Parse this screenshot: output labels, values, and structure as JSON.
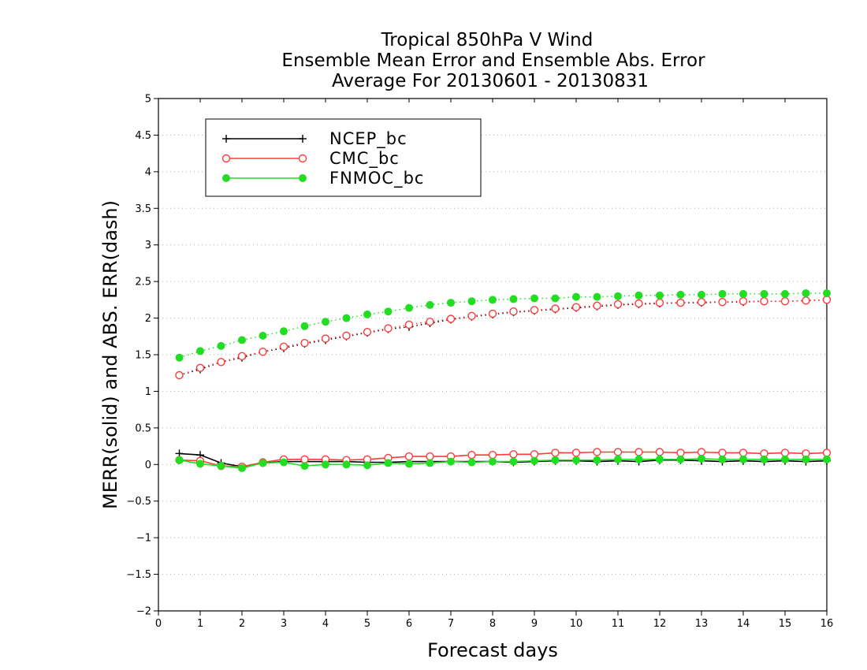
{
  "chart_data": {
    "type": "line",
    "title_lines": [
      "Tropical 850hPa V Wind",
      "Ensemble Mean Error and Ensemble Abs. Error",
      "Average For 20130601 - 20130831"
    ],
    "xlabel": "Forecast days",
    "ylabel": "MERR(solid) and ABS. ERR(dash)",
    "xlim": [
      0,
      16
    ],
    "ylim": [
      -2,
      5
    ],
    "x_ticks": [
      "0",
      "1",
      "2",
      "3",
      "4",
      "5",
      "6",
      "7",
      "8",
      "9",
      "10",
      "11",
      "12",
      "13",
      "14",
      "15",
      "16"
    ],
    "y_ticks": [
      "-2",
      "-1.5",
      "-1",
      "-0.5",
      "0",
      "0.5",
      "1",
      "1.5",
      "2",
      "2.5",
      "3",
      "3.5",
      "4",
      "4.5",
      "5"
    ],
    "grid": "horizontal dotted",
    "legend_position": "top-left",
    "x": [
      0.5,
      1,
      1.5,
      2,
      2.5,
      3,
      3.5,
      4,
      4.5,
      5,
      5.5,
      6,
      6.5,
      7,
      7.5,
      8,
      8.5,
      9,
      9.5,
      10,
      10.5,
      11,
      11.5,
      12,
      12.5,
      13,
      13.5,
      14,
      14.5,
      15,
      15.5,
      16
    ],
    "series": [
      {
        "name": "NCEP_bc",
        "color": "#000000",
        "marker": "plus",
        "merr": [
          0.15,
          0.13,
          0.02,
          -0.03,
          0.02,
          0.04,
          0.04,
          0.04,
          0.04,
          0.03,
          0.03,
          0.04,
          0.04,
          0.04,
          0.04,
          0.04,
          0.03,
          0.04,
          0.05,
          0.05,
          0.04,
          0.05,
          0.04,
          0.06,
          0.06,
          0.05,
          0.04,
          0.05,
          0.04,
          0.05,
          0.04,
          0.05
        ],
        "abs_err": [
          1.22,
          1.3,
          1.4,
          1.46,
          1.54,
          1.59,
          1.65,
          1.7,
          1.75,
          1.8,
          1.85,
          1.88,
          1.93,
          1.98,
          2.02,
          2.05,
          2.08,
          2.1,
          2.12,
          2.14,
          2.16,
          2.18,
          2.19,
          2.2,
          2.21,
          2.21,
          2.22,
          2.22,
          2.23,
          2.23,
          2.24,
          2.25
        ]
      },
      {
        "name": "CMC_bc",
        "color": "#ff3b3b",
        "marker": "open-circle",
        "merr": [
          0.06,
          0.05,
          -0.02,
          -0.03,
          0.03,
          0.07,
          0.07,
          0.07,
          0.06,
          0.07,
          0.09,
          0.11,
          0.11,
          0.11,
          0.13,
          0.13,
          0.14,
          0.14,
          0.16,
          0.16,
          0.17,
          0.17,
          0.17,
          0.17,
          0.16,
          0.17,
          0.16,
          0.16,
          0.15,
          0.16,
          0.15,
          0.16
        ],
        "abs_err": [
          1.22,
          1.32,
          1.4,
          1.48,
          1.54,
          1.61,
          1.66,
          1.72,
          1.76,
          1.81,
          1.86,
          1.91,
          1.95,
          1.99,
          2.03,
          2.06,
          2.09,
          2.11,
          2.13,
          2.15,
          2.17,
          2.19,
          2.2,
          2.21,
          2.21,
          2.22,
          2.22,
          2.23,
          2.23,
          2.23,
          2.24,
          2.25
        ]
      },
      {
        "name": "FNMOC_bc",
        "color": "#22dd22",
        "marker": "filled-circle",
        "merr": [
          0.06,
          0.01,
          -0.02,
          -0.05,
          0.02,
          0.03,
          -0.02,
          0.0,
          0.0,
          -0.01,
          0.02,
          0.01,
          0.02,
          0.04,
          0.03,
          0.04,
          0.04,
          0.05,
          0.06,
          0.06,
          0.06,
          0.07,
          0.07,
          0.07,
          0.07,
          0.08,
          0.07,
          0.07,
          0.07,
          0.07,
          0.07,
          0.07
        ],
        "abs_err": [
          1.46,
          1.55,
          1.62,
          1.7,
          1.76,
          1.82,
          1.89,
          1.95,
          2.0,
          2.05,
          2.09,
          2.14,
          2.18,
          2.21,
          2.23,
          2.25,
          2.26,
          2.27,
          2.27,
          2.29,
          2.29,
          2.3,
          2.31,
          2.31,
          2.32,
          2.32,
          2.33,
          2.33,
          2.33,
          2.33,
          2.34,
          2.34
        ]
      }
    ]
  }
}
